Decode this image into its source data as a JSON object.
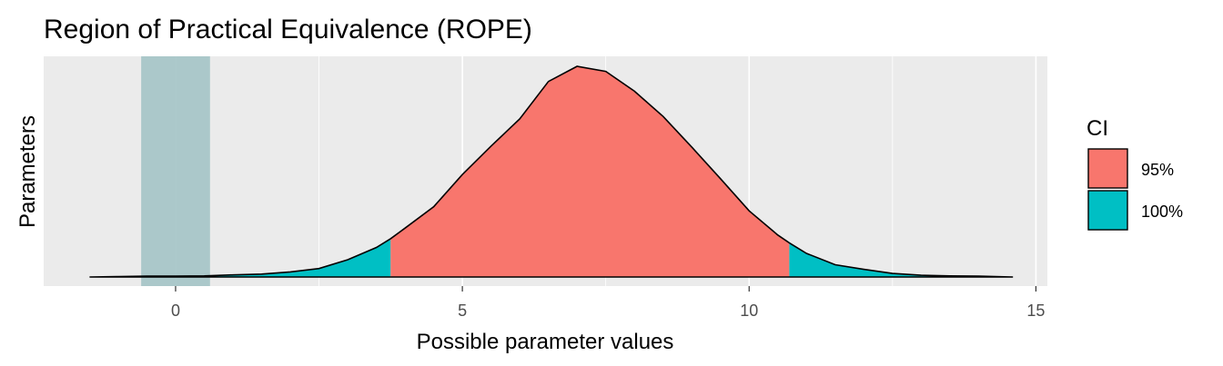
{
  "chart_data": {
    "type": "area",
    "title": "Region of Practical Equivalence (ROPE)",
    "xlabel": "Possible parameter values",
    "ylabel": "Parameters",
    "xlim": [
      -2.3,
      15.2
    ],
    "x_ticks": [
      0,
      5,
      10,
      15
    ],
    "x_tick_labels": [
      "0",
      "5",
      "10",
      "15"
    ],
    "grid": true,
    "rope": {
      "low": -0.6,
      "high": 0.6,
      "color": "#a8c6c8"
    },
    "density": {
      "x": [
        -1.5,
        -1.0,
        -0.5,
        0.0,
        0.5,
        1.0,
        1.5,
        2.0,
        2.5,
        3.0,
        3.5,
        3.75,
        4.0,
        4.5,
        5.0,
        5.5,
        6.0,
        6.5,
        7.0,
        7.5,
        8.0,
        8.5,
        9.0,
        9.5,
        10.0,
        10.5,
        10.7,
        11.0,
        11.5,
        12.0,
        12.5,
        13.0,
        13.5,
        14.0,
        14.6
      ],
      "y": [
        0.0,
        0.002,
        0.004,
        0.004,
        0.005,
        0.01,
        0.014,
        0.024,
        0.04,
        0.082,
        0.14,
        0.182,
        0.232,
        0.333,
        0.486,
        0.621,
        0.75,
        0.928,
        1.0,
        0.976,
        0.882,
        0.762,
        0.617,
        0.467,
        0.314,
        0.199,
        0.162,
        0.112,
        0.058,
        0.036,
        0.017,
        0.008,
        0.005,
        0.004,
        0.0
      ]
    },
    "ci": {
      "low": 3.75,
      "high": 10.7
    },
    "legend": {
      "title": "CI",
      "placement": "right",
      "entries": [
        {
          "label": "95%",
          "color": "#f8766d"
        },
        {
          "label": "100%",
          "color": "#00bfc4"
        }
      ]
    },
    "panel_background": "#ebebeb",
    "grid_color": "#ffffff"
  }
}
